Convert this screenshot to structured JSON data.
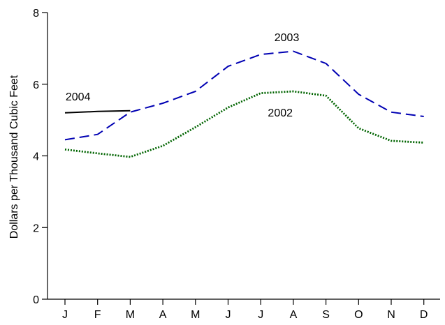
{
  "chart_data": {
    "type": "line",
    "title": "",
    "xlabel": "",
    "ylabel": "Dollars per Thousand Cubic Feet",
    "categories": [
      "J",
      "F",
      "M",
      "A",
      "M",
      "J",
      "J",
      "A",
      "S",
      "O",
      "N",
      "D"
    ],
    "ylim": [
      0,
      8
    ],
    "yticks": [
      0,
      2,
      4,
      6,
      8
    ],
    "grid": false,
    "legend": "none",
    "series": [
      {
        "name": "2004",
        "values": [
          5.2,
          5.24,
          5.26,
          null,
          null,
          null,
          null,
          null,
          null,
          null,
          null,
          null
        ],
        "color": "#000000",
        "style": "solid",
        "label_at": 0.4,
        "label_value": 5.55
      },
      {
        "name": "2003",
        "values": [
          4.45,
          4.6,
          5.22,
          5.47,
          5.8,
          6.5,
          6.83,
          6.92,
          6.58,
          5.72,
          5.22,
          5.1
        ],
        "color": "#0000b3",
        "style": "dashed",
        "label_at": 6.8,
        "label_value": 7.2
      },
      {
        "name": "2002",
        "values": [
          4.18,
          4.07,
          3.97,
          4.28,
          4.8,
          5.35,
          5.75,
          5.8,
          5.68,
          4.77,
          4.42,
          4.37
        ],
        "color": "#006400",
        "style": "dotted",
        "label_at": 6.6,
        "label_value": 5.1
      }
    ]
  }
}
